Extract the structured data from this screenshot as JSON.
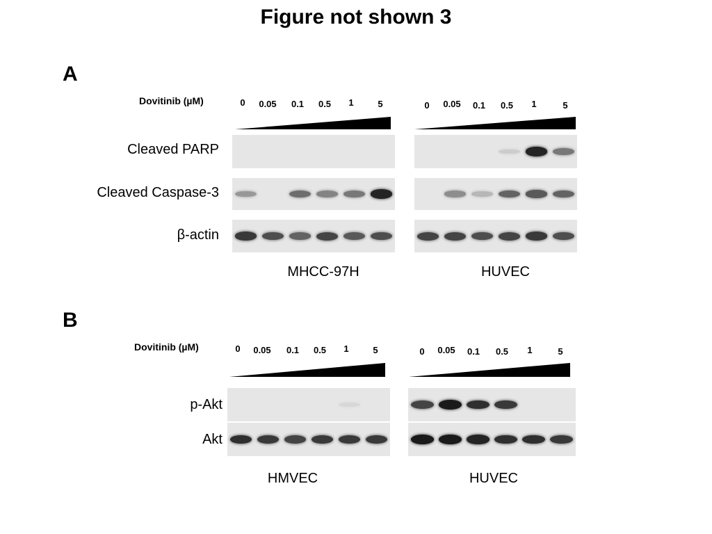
{
  "figure": {
    "title": "Figure not shown 3"
  },
  "panel_a": {
    "letter": "A",
    "treatment_label": "Dovitinib (µM)",
    "left_doses": [
      "0",
      "0.05",
      "0.1",
      "0.5",
      "1",
      "5"
    ],
    "right_doses": [
      "0",
      "0.05",
      "0.1",
      "0.5",
      "1",
      "5"
    ],
    "rows": [
      "Cleaved PARP",
      "Cleaved Caspase-3",
      "β-actin"
    ],
    "left_cell_line": "MHCC-97H",
    "right_cell_line": "HUVEC",
    "band_intensity": {
      "MHCC-97H": {
        "Cleaved PARP": [
          0,
          0,
          0,
          0,
          0,
          0
        ],
        "Cleaved Caspase-3": [
          0.35,
          0,
          0.55,
          0.45,
          0.5,
          0.9
        ],
        "β-actin": [
          0.8,
          0.7,
          0.6,
          0.75,
          0.65,
          0.7
        ]
      },
      "HUVEC": {
        "Cleaved PARP": [
          0,
          0,
          0,
          0.1,
          0.9,
          0.5
        ],
        "Cleaved Caspase-3": [
          0,
          0.4,
          0.2,
          0.6,
          0.65,
          0.6
        ],
        "β-actin": [
          0.75,
          0.75,
          0.7,
          0.75,
          0.8,
          0.7
        ]
      }
    }
  },
  "panel_b": {
    "letter": "B",
    "treatment_label": "Dovitinib (µM)",
    "left_doses": [
      "0",
      "0.05",
      "0.1",
      "0.5",
      "1",
      "5"
    ],
    "right_doses": [
      "0",
      "0.05",
      "0.1",
      "0.5",
      "1",
      "5"
    ],
    "rows": [
      "p-Akt",
      "Akt"
    ],
    "left_cell_line": "HMVEC",
    "right_cell_line": "HUVEC",
    "band_intensity": {
      "HMVEC": {
        "p-Akt": [
          0,
          0,
          0,
          0,
          0.05,
          0
        ],
        "Akt": [
          0.85,
          0.8,
          0.75,
          0.8,
          0.8,
          0.8
        ]
      },
      "HUVEC": {
        "p-Akt": [
          0.75,
          0.95,
          0.85,
          0.8,
          0,
          0
        ],
        "Akt": [
          0.95,
          0.95,
          0.9,
          0.85,
          0.85,
          0.8
        ]
      }
    }
  }
}
